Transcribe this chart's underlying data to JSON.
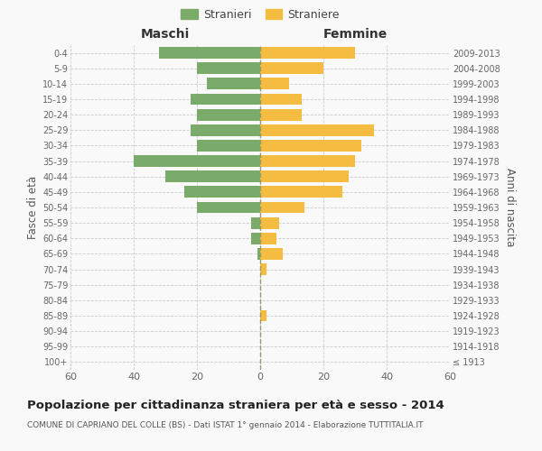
{
  "age_groups": [
    "100+",
    "95-99",
    "90-94",
    "85-89",
    "80-84",
    "75-79",
    "70-74",
    "65-69",
    "60-64",
    "55-59",
    "50-54",
    "45-49",
    "40-44",
    "35-39",
    "30-34",
    "25-29",
    "20-24",
    "15-19",
    "10-14",
    "5-9",
    "0-4"
  ],
  "birth_years": [
    "≤ 1913",
    "1914-1918",
    "1919-1923",
    "1924-1928",
    "1929-1933",
    "1934-1938",
    "1939-1943",
    "1944-1948",
    "1949-1953",
    "1954-1958",
    "1959-1963",
    "1964-1968",
    "1969-1973",
    "1974-1978",
    "1979-1983",
    "1984-1988",
    "1989-1993",
    "1994-1998",
    "1999-2003",
    "2004-2008",
    "2009-2013"
  ],
  "males": [
    0,
    0,
    0,
    0,
    0,
    0,
    0,
    1,
    3,
    3,
    20,
    24,
    30,
    40,
    20,
    22,
    20,
    22,
    17,
    20,
    32
  ],
  "females": [
    0,
    0,
    0,
    2,
    0,
    0,
    2,
    7,
    5,
    6,
    14,
    26,
    28,
    30,
    32,
    36,
    13,
    13,
    9,
    20,
    30
  ],
  "male_color": "#7aab6b",
  "female_color": "#f5bc42",
  "background_color": "#f9f9f9",
  "grid_color": "#cccccc",
  "title": "Popolazione per cittadinanza straniera per età e sesso - 2014",
  "subtitle": "COMUNE DI CAPRIANO DEL COLLE (BS) - Dati ISTAT 1° gennaio 2014 - Elaborazione TUTTITALIA.IT",
  "ylabel_left": "Fasce di età",
  "ylabel_right": "Anni di nascita",
  "xlabel_left": "Maschi",
  "xlabel_right": "Femmine",
  "xlim": 60,
  "legend_male": "Stranieri",
  "legend_female": "Straniere"
}
